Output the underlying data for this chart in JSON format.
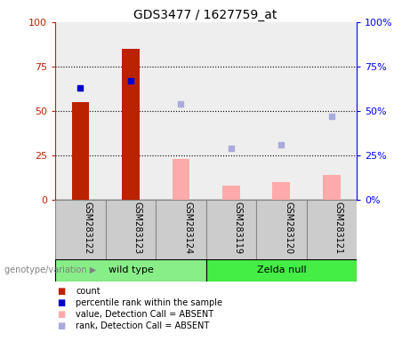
{
  "title": "GDS3477 / 1627759_at",
  "samples": [
    "GSM283122",
    "GSM283123",
    "GSM283124",
    "GSM283119",
    "GSM283120",
    "GSM283121"
  ],
  "count_values": [
    55,
    85,
    null,
    null,
    null,
    null
  ],
  "percentile_rank_values": [
    63,
    67,
    null,
    null,
    null,
    null
  ],
  "value_absent": [
    null,
    null,
    23,
    8,
    10,
    14
  ],
  "rank_absent": [
    null,
    null,
    54,
    29,
    31,
    47
  ],
  "bar_width": 0.35,
  "ylim": [
    0,
    100
  ],
  "y_ticks": [
    0,
    25,
    50,
    75,
    100
  ],
  "red_color": "#bb2200",
  "blue_color": "#0000cc",
  "pink_color": "#ffaaaa",
  "lavender_color": "#aaaadd",
  "wild_type_color": "#88ee88",
  "zelda_null_color": "#44ee44",
  "sample_bg_color": "#cccccc",
  "legend": [
    {
      "label": "count",
      "color": "#bb2200"
    },
    {
      "label": "percentile rank within the sample",
      "color": "#0000cc"
    },
    {
      "label": "value, Detection Call = ABSENT",
      "color": "#ffaaaa"
    },
    {
      "label": "rank, Detection Call = ABSENT",
      "color": "#aaaadd"
    }
  ]
}
